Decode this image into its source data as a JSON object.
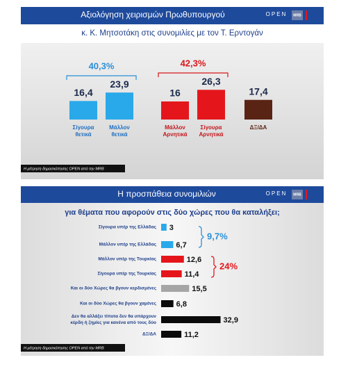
{
  "chart_data": [
    {
      "type": "bar",
      "title": "Αξιολόγηση χειρισμών Πρωθυπουργού",
      "subtitle": "κ. Κ. Μητσοτάκη στις συνομιλίες με  τον Τ. Ερντογάν",
      "brand": [
        "OPEN",
        "MRB"
      ],
      "source": "Η μέτρηση δημοσκόπησης OPEN από την MRB",
      "categories": [
        [
          "Σίγουρα",
          "θετικά"
        ],
        [
          "Μάλλον",
          "θετικά"
        ],
        [
          "Μάλλον",
          "Αρνητικά"
        ],
        [
          "Σίγουρα",
          "Αρνητικά"
        ],
        [
          "ΔΞ/ΔΑ"
        ]
      ],
      "values": [
        16.4,
        23.9,
        16,
        26.3,
        17.4
      ],
      "value_labels": [
        "16,4",
        "23,9",
        "16",
        "26,3",
        "17,4"
      ],
      "colors": [
        "#2aa9ea",
        "#2aa9ea",
        "#e5161b",
        "#e5161b",
        "#5a2414"
      ],
      "label_colors": [
        "#1f6fc0",
        "#1f6fc0",
        "#c4161b",
        "#c4161b",
        "#5a2414"
      ],
      "annotations": [
        {
          "text": "40,3%",
          "color": "#2a8fd8"
        },
        {
          "text": "42,3%",
          "color": "#d8161b"
        }
      ],
      "ylim": [
        0,
        40
      ]
    },
    {
      "type": "hbar",
      "title": "Η προσπάθεια συνομιλιών",
      "subtitle": "για θέματα που αφορούν στις δύο χώρες που θα καταλήξει;",
      "brand": [
        "OPEN",
        "MRB"
      ],
      "source": "Η μέτρηση δημοσκόπησης OPEN από την MRB",
      "categories": [
        [
          "Σίγουρα υπέρ της Ελλάδας"
        ],
        [
          "Μάλλον υπέρ της Ελλάδας"
        ],
        [
          "Μάλλον υπέρ της Τουρκίας"
        ],
        [
          "Σίγουρα υπέρ της Τουρκίας"
        ],
        [
          "Και οι δύο Χώρες θα βγουν κερδισμένες"
        ],
        [
          "Και οι δύο Χώρες θα βγουν χαμένες"
        ],
        [
          "Δεν θα αλλάξει τίποτα δεν θα υπάρχουν",
          "κέρδη ή ζημίες για κανένα από τους δύο"
        ],
        [
          "ΔΞ/ΔΑ"
        ]
      ],
      "values": [
        3,
        6.7,
        12.6,
        11.4,
        15.5,
        6.8,
        32.9,
        11.2
      ],
      "value_labels": [
        "3",
        "6,7",
        "12,6",
        "11,4",
        "15,5",
        "6,8",
        "32,9",
        "11,2"
      ],
      "colors": [
        "#2aa9ea",
        "#2aa9ea",
        "#e5161b",
        "#e5161b",
        "#a6a6a6",
        "#0b0b0b",
        "#0b0b0b",
        "#0b0b0b"
      ],
      "annotations": [
        {
          "text": "9,7%",
          "color": "#2a8fd8"
        },
        {
          "text": "24%",
          "color": "#e5161b"
        }
      ],
      "xlim": [
        0,
        40
      ]
    }
  ]
}
